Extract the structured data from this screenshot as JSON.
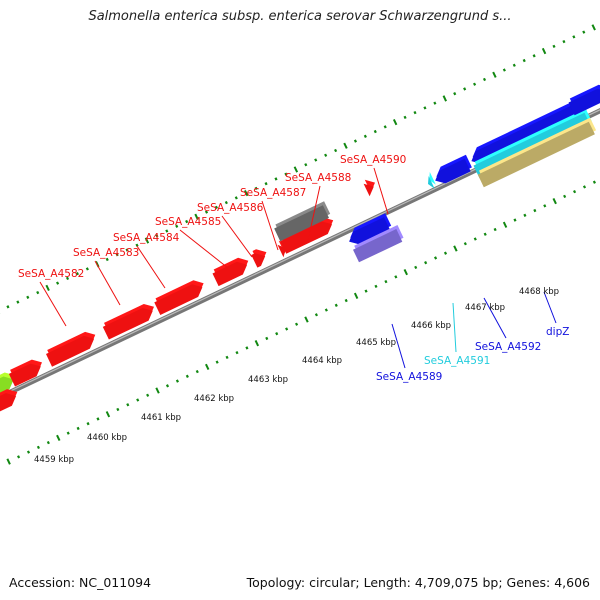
{
  "title": "Salmonella enterica subsp. enterica serovar Schwarzengrund s...",
  "footer": {
    "accession": "Accession: NC_011094",
    "topology": "Topology: circular; Length: 4,709,075 bp; Genes: 4,606"
  },
  "colors": {
    "red": "#ee1111",
    "blue": "#1111dd",
    "cyan": "#22ccdd",
    "gray": "#666666",
    "purple": "#7766cc",
    "tan": "#bbaa66",
    "green": "#88dd22",
    "tick": "#118811"
  },
  "scale_labels": [
    "4459 kbp",
    "4460 kbp",
    "4461 kbp",
    "4462 kbp",
    "4463 kbp",
    "4464 kbp",
    "4465 kbp",
    "4466 kbp",
    "4467 kbp",
    "4468 kbp"
  ],
  "gene_labels": [
    {
      "text": "SeSA_A4582",
      "color": "red"
    },
    {
      "text": "SeSA_A4583",
      "color": "red"
    },
    {
      "text": "SeSA_A4584",
      "color": "red"
    },
    {
      "text": "SeSA_A4585",
      "color": "red"
    },
    {
      "text": "SeSA_A4586",
      "color": "red"
    },
    {
      "text": "SeSA_A4587",
      "color": "red"
    },
    {
      "text": "SeSA_A4588",
      "color": "red"
    },
    {
      "text": "SeSA_A4590",
      "color": "red"
    },
    {
      "text": "SeSA_A4589",
      "color": "blue"
    },
    {
      "text": "SeSA_A4591",
      "color": "cyan"
    },
    {
      "text": "SeSA_A4592",
      "color": "blue"
    },
    {
      "text": "dipZ",
      "color": "blue"
    }
  ]
}
